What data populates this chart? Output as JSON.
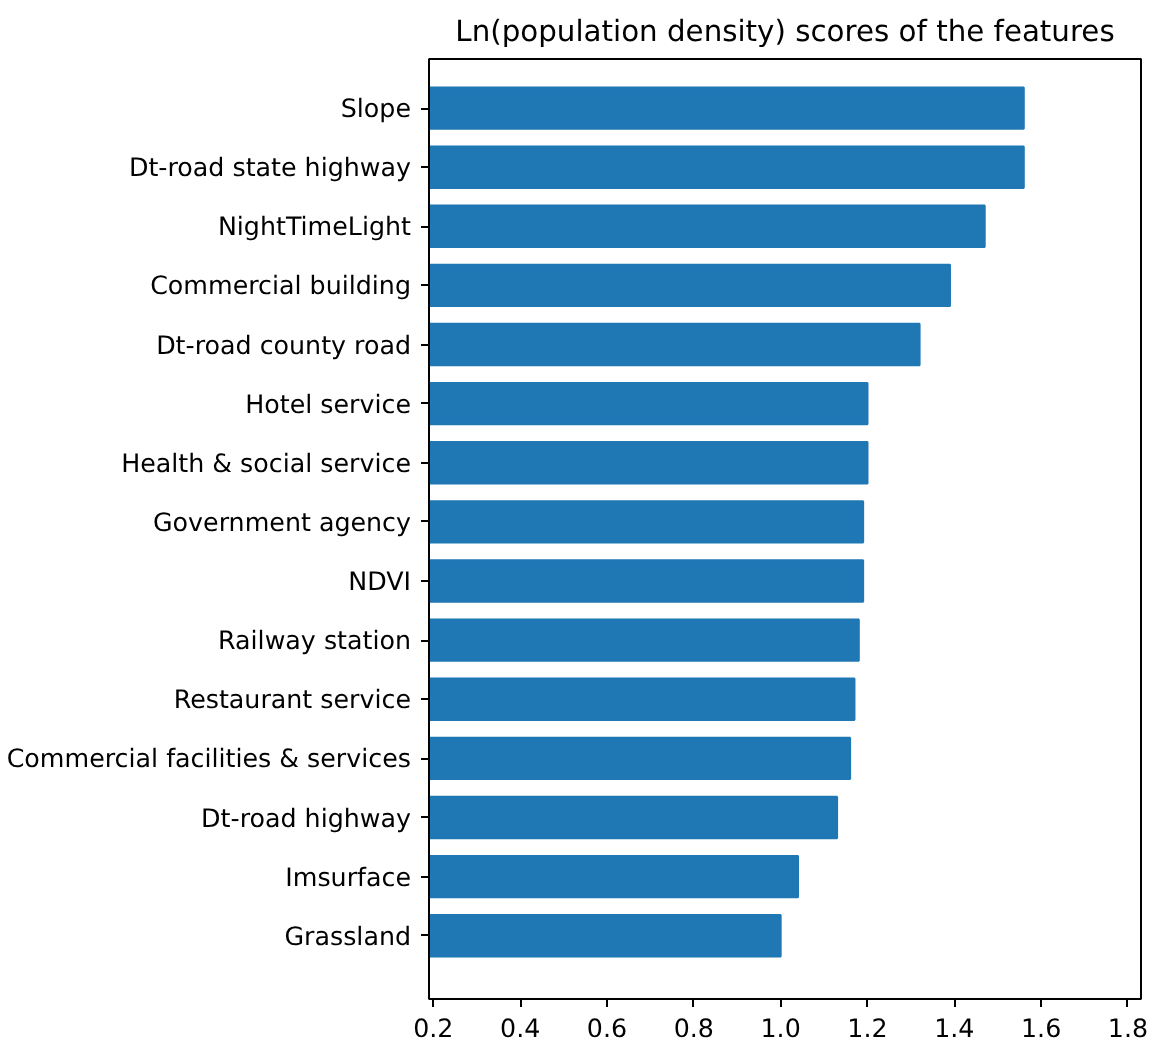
{
  "chart_data": {
    "type": "bar",
    "orientation": "horizontal",
    "title": "Ln(population density) scores of the features",
    "categories": [
      "Slope",
      "Dt-road state highway",
      "NightTimeLight",
      "Commercial building",
      "Dt-road county road",
      "Hotel service",
      "Health & social service",
      "Government agency",
      "NDVI",
      "Railway station",
      "Restaurant service",
      "Commercial facilities & services",
      "Dt-road highway",
      "Imsurface",
      "Grassland"
    ],
    "values": [
      1.56,
      1.56,
      1.47,
      1.39,
      1.32,
      1.2,
      1.2,
      1.19,
      1.19,
      1.18,
      1.17,
      1.16,
      1.13,
      1.04,
      1.0
    ],
    "color": "#1f77b4",
    "xlim": [
      0.19,
      1.83
    ],
    "xticks": [
      0.2,
      0.4,
      0.6,
      0.8,
      {
        "value": 1.0,
        "label": "1.0"
      },
      1.2,
      1.4,
      1.6,
      1.8
    ],
    "grid": false
  }
}
